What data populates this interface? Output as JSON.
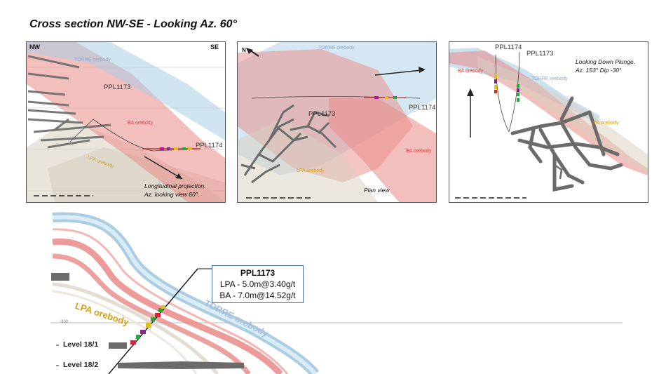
{
  "title": "Cross section NW-SE - Looking Az. 60°",
  "panels": {
    "longitudinal": {
      "dir_left": "NW",
      "dir_right": "SE",
      "orebodies": {
        "torre": "TORRE orebody",
        "ba": "BA orebody",
        "lpa": "LPA orebody"
      },
      "holes": [
        "PPL1173",
        "PPL1174"
      ],
      "caption": [
        "Longitudinal projection.",
        "Az. looking view 60°."
      ]
    },
    "plan": {
      "orebodies": {
        "torre": "TORRE orebody",
        "ba": "BA orebody",
        "lpa": "LPA orebody"
      },
      "holes": [
        "PPL1173",
        "PPL1174"
      ],
      "caption": "Plan view"
    },
    "plunge": {
      "orebodies": {
        "torre": "TORRE orebody",
        "ba": "BA orebody",
        "lpa": "LPA orebody"
      },
      "holes": [
        "PPL1174",
        "PPL1173"
      ],
      "caption": [
        "Looking Down Plunge.",
        "Az. 153° Dip -30°"
      ]
    }
  },
  "detail": {
    "callout": {
      "hole": "PPL1173",
      "rows": [
        "LPA - 5.0m@3.40g/t",
        "BA - 7.0m@14.52g/t"
      ]
    },
    "orebodies": {
      "lpa": "LPA orebody",
      "torre": "TORRE orebody"
    },
    "elevation": "-300",
    "levels": [
      "Level 18/1",
      "Level 18/2"
    ]
  },
  "colors": {
    "torre": "#9cc3dc",
    "ba": "#e98a86",
    "lpa": "#d4a016",
    "workings": "#6b6b6b",
    "callout_border": "#4a6c99"
  }
}
